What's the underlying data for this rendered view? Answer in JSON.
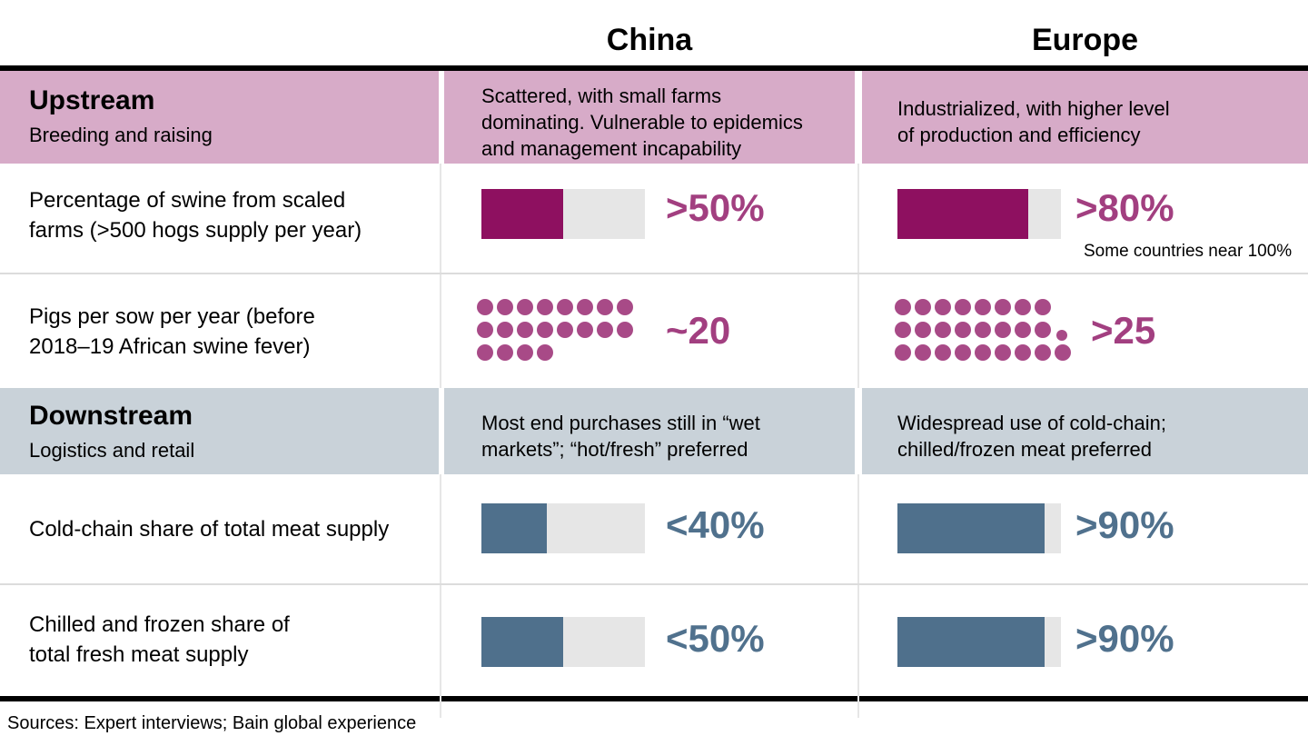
{
  "columns": {
    "china": "China",
    "europe": "Europe"
  },
  "colors": {
    "magenta_fill": "#8e1060",
    "magenta_text": "#a23f80",
    "dot": "#a84a87",
    "blue_fill": "#4f708c",
    "blue_text": "#50718d",
    "pink_band": "#d7abc8",
    "blue_band": "#c9d2d9",
    "track": "#e6e6e6"
  },
  "sections": {
    "upstream": {
      "title": "Upstream",
      "subtitle": "Breeding and raising",
      "china": "Scattered, with small farms\ndominating. Vulnerable to epidemics\nand management incapability",
      "europe": "Industrialized, with higher level\nof production and efficiency"
    },
    "downstream": {
      "title": "Downstream",
      "subtitle": "Logistics and retail",
      "china": "Most end purchases still in “wet\nmarkets”; “hot/fresh” preferred",
      "europe": "Widespread use of cold-chain;\nchilled/frozen meat preferred"
    }
  },
  "rows": {
    "scaled_farms": {
      "label": "Percentage of swine from scaled\nfarms (>500 hogs supply per year)",
      "china": {
        "pct": 50,
        "value": ">50%"
      },
      "europe": {
        "pct": 80,
        "value": ">80%",
        "note": "Some countries near 100%"
      }
    },
    "pigs_per_sow": {
      "label": "Pigs per sow per year (before\n2018–19 African swine fever)",
      "china": {
        "value": "~20",
        "dots": {
          "rows": [
            8,
            8,
            4
          ]
        }
      },
      "europe": {
        "value": ">25",
        "dots": {
          "rows": [
            8,
            8,
            9
          ],
          "extra_small_row": 1
        }
      }
    },
    "cold_chain": {
      "label": "Cold-chain share of total meat supply",
      "china": {
        "pct": 40,
        "value": "<40%"
      },
      "europe": {
        "pct": 90,
        "value": ">90%"
      }
    },
    "chilled_frozen": {
      "label": "Chilled and frozen share of\ntotal fresh meat supply",
      "china": {
        "pct": 50,
        "value": "<50%"
      },
      "europe": {
        "pct": 90,
        "value": ">90%"
      }
    }
  },
  "footer": {
    "sources": "Sources: Expert interviews; Bain global experience"
  },
  "chart_data": [
    {
      "type": "bar",
      "title": "Percentage of swine from scaled farms (>500 hogs supply per year)",
      "categories": [
        "China",
        "Europe"
      ],
      "values": [
        50,
        80
      ],
      "value_labels": [
        ">50%",
        ">80%"
      ],
      "annotations": [
        "",
        "Some countries near 100%"
      ],
      "xlabel": "",
      "ylabel": "",
      "ylim": [
        0,
        100
      ],
      "legend": "none",
      "grid": false
    },
    {
      "type": "pictogram",
      "title": "Pigs per sow per year (before 2018–19 African swine fever)",
      "categories": [
        "China",
        "Europe"
      ],
      "values": [
        20,
        25
      ],
      "value_labels": [
        "~20",
        ">25"
      ],
      "dot_layout": {
        "China": [
          8,
          8,
          4
        ],
        "Europe": [
          8,
          8,
          9
        ]
      },
      "legend": "none",
      "grid": false
    },
    {
      "type": "bar",
      "title": "Cold-chain share of total meat supply",
      "categories": [
        "China",
        "Europe"
      ],
      "values": [
        40,
        90
      ],
      "value_labels": [
        "<40%",
        ">90%"
      ],
      "xlabel": "",
      "ylabel": "",
      "ylim": [
        0,
        100
      ],
      "legend": "none",
      "grid": false
    },
    {
      "type": "bar",
      "title": "Chilled and frozen share of total fresh meat supply",
      "categories": [
        "China",
        "Europe"
      ],
      "values": [
        50,
        90
      ],
      "value_labels": [
        "<50%",
        ">90%"
      ],
      "xlabel": "",
      "ylabel": "",
      "ylim": [
        0,
        100
      ],
      "legend": "none",
      "grid": false
    }
  ]
}
